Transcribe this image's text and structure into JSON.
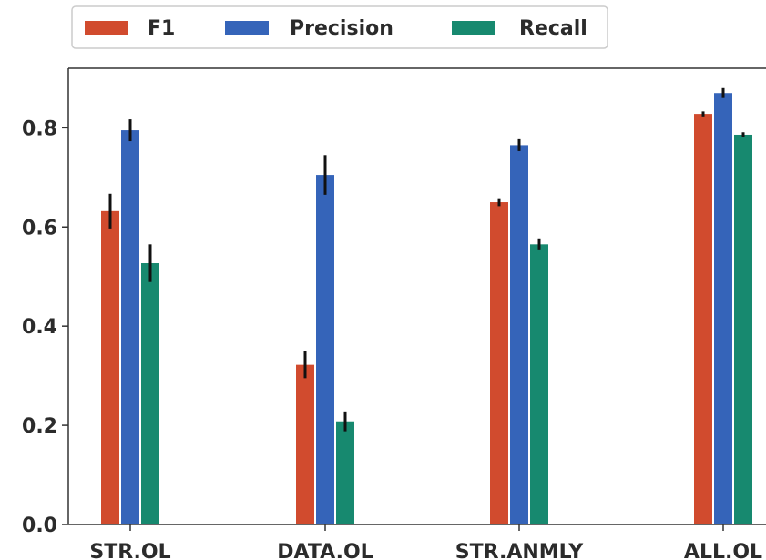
{
  "chart_data": {
    "type": "bar",
    "title": "",
    "xlabel": "",
    "ylabel": "",
    "categories": [
      "STR.OL",
      "DATA.OL",
      "STR.ANMLY",
      "ALL.OL"
    ],
    "series": [
      {
        "name": "F1",
        "color": "#d14b2e",
        "values": [
          0.632,
          0.322,
          0.65,
          0.828
        ],
        "errors": [
          0.035,
          0.027,
          0.008,
          0.005
        ]
      },
      {
        "name": "Precision",
        "color": "#3564b9",
        "values": [
          0.795,
          0.705,
          0.765,
          0.87
        ],
        "errors": [
          0.022,
          0.04,
          0.012,
          0.01
        ]
      },
      {
        "name": "Recall",
        "color": "#17896f",
        "values": [
          0.527,
          0.208,
          0.565,
          0.786
        ],
        "errors": [
          0.038,
          0.02,
          0.012,
          0.005
        ]
      }
    ],
    "yticks": [
      "0.0",
      "0.2",
      "0.4",
      "0.6",
      "0.8"
    ],
    "ylim": [
      0,
      0.92
    ],
    "grid": false,
    "legend_position": "top-left"
  }
}
